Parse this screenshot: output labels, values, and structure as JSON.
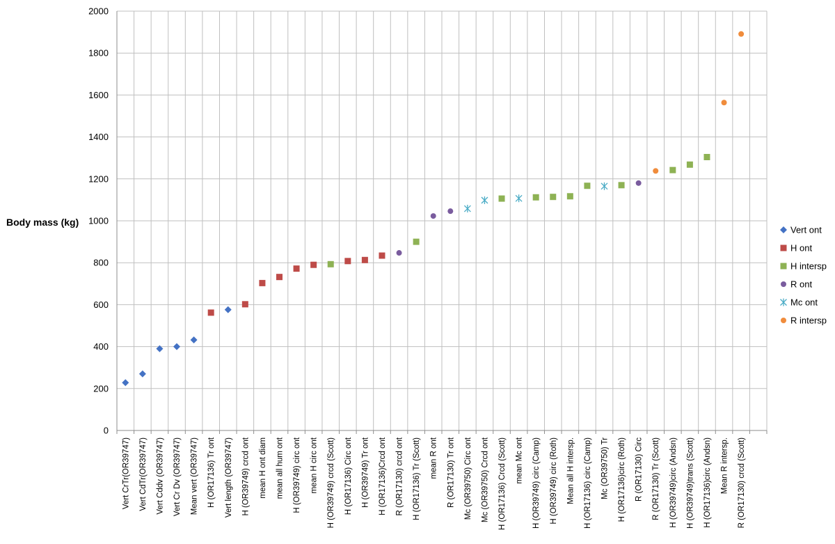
{
  "chart_data": {
    "type": "scatter",
    "title": "",
    "xlabel": "",
    "ylabel": "Body mass (kg)",
    "ylim": [
      0,
      2000
    ],
    "yticks": [
      0,
      200,
      400,
      600,
      800,
      1000,
      1200,
      1400,
      1600,
      1800,
      2000
    ],
    "grid": true,
    "legend_position": "right",
    "categories": [
      "Vert CrTr(OR39747)",
      "Vert CdTr(OR39747)",
      "Vert Cddv (OR39747)",
      "Vert Cr Dv (OR39747)",
      "Mean vert (OR39747)",
      "H (OR17136) Tr ont",
      "Vert length (OR39747)",
      "H (OR39749) crcd ont",
      "mean H ont diam",
      "mean all hum ont",
      "H (OR39749) circ ont",
      "mean H circ ont",
      "H (OR39749) crcd (Scott)",
      "H (OR17136) Circ ont",
      "H (OR39749) Tr ont",
      "H (OR17136)Crcd ont",
      "R (OR17130) crcd ont",
      "H (OR17136) Tr (Scott)",
      "mean R ont",
      "R (OR17130) Tr ont",
      "Mc (OR39750) Circ ont",
      "Mc (OR39750) Crcd ont",
      "H (OR17136) Crcd (Scott)",
      "mean Mc ont",
      "H (OR39749) circ (Camp)",
      "H (OR39749) circ (Roth)",
      "Mean all H intersp.",
      "H (OR17136) circ (Camp)",
      "Mc (OR39750) Tr",
      "H (OR17136)circ (Roth)",
      "R (OR17130) Circ",
      "R (OR17130) Tr (Scott)",
      "H (OR39749)circ (Andsn)",
      "H (OR39749)trans (Scott)",
      "H (OR17136)circ (Andsn)",
      "Mean R intersp.",
      "R (OR17130) crcd (Scott)",
      ""
    ],
    "series": [
      {
        "name": "Vert ont",
        "marker": "diamond",
        "color": "#4472C4",
        "points": [
          {
            "x": "Vert CrTr(OR39747)",
            "y": 228
          },
          {
            "x": "Vert CdTr(OR39747)",
            "y": 270
          },
          {
            "x": "Vert Cddv (OR39747)",
            "y": 390
          },
          {
            "x": "Vert Cr Dv (OR39747)",
            "y": 400
          },
          {
            "x": "Mean vert (OR39747)",
            "y": 432
          },
          {
            "x": "Vert length (OR39747)",
            "y": 576
          }
        ]
      },
      {
        "name": "H ont",
        "marker": "square",
        "color": "#BE4B48",
        "points": [
          {
            "x": "H (OR17136) Tr ont",
            "y": 562
          },
          {
            "x": "H (OR39749) crcd ont",
            "y": 602
          },
          {
            "x": "mean H ont diam",
            "y": 703
          },
          {
            "x": "mean all hum ont",
            "y": 732
          },
          {
            "x": "H (OR39749) circ ont",
            "y": 772
          },
          {
            "x": "mean H circ ont",
            "y": 790
          },
          {
            "x": "H (OR17136) Circ ont",
            "y": 808
          },
          {
            "x": "H (OR39749) Tr ont",
            "y": 813
          },
          {
            "x": "H (OR17136)Crcd ont",
            "y": 834
          }
        ]
      },
      {
        "name": "H intersp",
        "marker": "square",
        "color": "#8EB254",
        "points": [
          {
            "x": "H (OR39749) crcd (Scott)",
            "y": 793
          },
          {
            "x": "H (OR17136) Tr (Scott)",
            "y": 900
          },
          {
            "x": "H (OR17136) Crcd (Scott)",
            "y": 1106
          },
          {
            "x": "H (OR39749) circ (Camp)",
            "y": 1112
          },
          {
            "x": "H (OR39749) circ (Roth)",
            "y": 1114
          },
          {
            "x": "Mean all H intersp.",
            "y": 1117
          },
          {
            "x": "H (OR17136) circ (Camp)",
            "y": 1167
          },
          {
            "x": "H (OR17136)circ (Roth)",
            "y": 1170
          },
          {
            "x": "H (OR39749)circ (Andsn)",
            "y": 1242
          },
          {
            "x": "H (OR39749)trans (Scott)",
            "y": 1268
          },
          {
            "x": "H (OR17136)circ (Andsn)",
            "y": 1304
          }
        ]
      },
      {
        "name": "R ont",
        "marker": "circle",
        "color": "#7A5C9E",
        "points": [
          {
            "x": "R (OR17130) crcd ont",
            "y": 847
          },
          {
            "x": "mean R ont",
            "y": 1023
          },
          {
            "x": "R (OR17130) Tr ont",
            "y": 1046
          },
          {
            "x": "R (OR17130) Circ",
            "y": 1180
          }
        ]
      },
      {
        "name": "Mc ont",
        "marker": "star",
        "color": "#4BACC6",
        "points": [
          {
            "x": "Mc (OR39750) Circ ont",
            "y": 1058
          },
          {
            "x": "Mc (OR39750) Crcd ont",
            "y": 1098
          },
          {
            "x": "mean Mc ont",
            "y": 1107
          },
          {
            "x": "Mc (OR39750) Tr",
            "y": 1165
          }
        ]
      },
      {
        "name": "R intersp",
        "marker": "circle",
        "color": "#F08C3C",
        "points": [
          {
            "x": "R (OR17130) Tr (Scott)",
            "y": 1238
          },
          {
            "x": "Mean R intersp.",
            "y": 1564
          },
          {
            "x": "R (OR17130) crcd (Scott)",
            "y": 1891
          }
        ]
      }
    ]
  }
}
